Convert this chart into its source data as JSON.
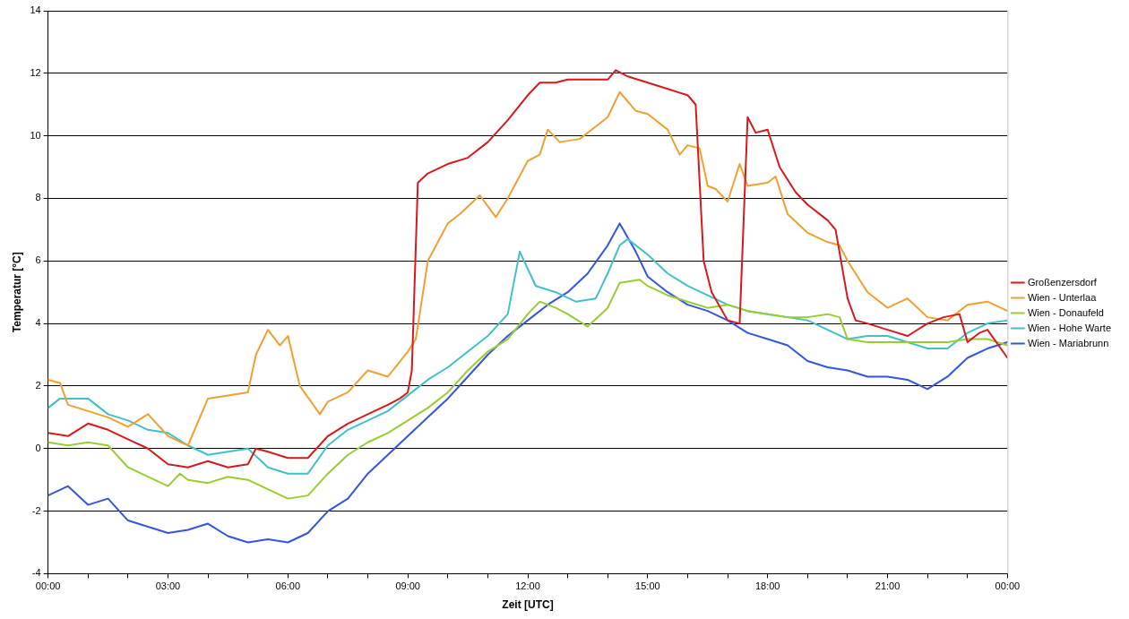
{
  "chart_data": {
    "type": "line",
    "xlabel": "Zeit [UTC]",
    "ylabel": "Temperatur [°C]",
    "xlim": [
      0,
      24
    ],
    "xticks": [
      {
        "value": 0,
        "label": "00:00"
      },
      {
        "value": 1,
        "label": null
      },
      {
        "value": 2,
        "label": null
      },
      {
        "value": 3,
        "label": "03:00"
      },
      {
        "value": 4,
        "label": null
      },
      {
        "value": 5,
        "label": null
      },
      {
        "value": 6,
        "label": "06:00"
      },
      {
        "value": 7,
        "label": null
      },
      {
        "value": 8,
        "label": null
      },
      {
        "value": 9,
        "label": "09:00"
      },
      {
        "value": 10,
        "label": null
      },
      {
        "value": 11,
        "label": null
      },
      {
        "value": 12,
        "label": "12:00"
      },
      {
        "value": 13,
        "label": null
      },
      {
        "value": 14,
        "label": null
      },
      {
        "value": 15,
        "label": "15:00"
      },
      {
        "value": 16,
        "label": null
      },
      {
        "value": 17,
        "label": null
      },
      {
        "value": 18,
        "label": "18:00"
      },
      {
        "value": 19,
        "label": null
      },
      {
        "value": 20,
        "label": null
      },
      {
        "value": 21,
        "label": "21:00"
      },
      {
        "value": 22,
        "label": null
      },
      {
        "value": 23,
        "label": null
      },
      {
        "value": 24,
        "label": "00:00"
      }
    ],
    "ylim": [
      -4,
      14
    ],
    "yticks": [
      -4,
      -2,
      0,
      2,
      4,
      6,
      8,
      10,
      12,
      14
    ],
    "grid": "y",
    "legend": "right",
    "marker": "none",
    "line_style": "solid",
    "series": [
      {
        "name": "Großenzersdorf",
        "color": "#d7191c",
        "x": [
          0,
          0.5,
          1,
          1.5,
          2,
          2.5,
          3,
          3.5,
          4,
          4.5,
          5,
          5.2,
          5.5,
          6,
          6.5,
          7,
          7.5,
          8,
          8.5,
          8.8,
          9,
          9.1,
          9.25,
          9.5,
          10,
          10.5,
          11,
          11.5,
          12,
          12.3,
          12.7,
          13,
          13.5,
          14,
          14.2,
          14.5,
          15,
          15.5,
          16,
          16.2,
          16.4,
          16.6,
          17,
          17.3,
          17.5,
          17.7,
          18,
          18.3,
          18.7,
          19,
          19.5,
          19.7,
          20,
          20.2,
          20.5,
          21,
          21.5,
          22,
          22.4,
          22.8,
          23,
          23.3,
          23.5,
          24
        ],
        "values": [
          0.5,
          0.4,
          0.8,
          0.6,
          0.3,
          0.0,
          -0.5,
          -0.6,
          -0.4,
          -0.6,
          -0.5,
          0.0,
          -0.1,
          -0.3,
          -0.3,
          0.4,
          0.8,
          1.1,
          1.4,
          1.6,
          1.8,
          2.5,
          8.5,
          8.8,
          9.1,
          9.3,
          9.8,
          10.5,
          11.3,
          11.7,
          11.7,
          11.8,
          11.8,
          11.8,
          12.1,
          11.9,
          11.7,
          11.5,
          11.3,
          11.0,
          6.0,
          5.0,
          4.1,
          4.0,
          10.6,
          10.1,
          10.2,
          9.0,
          8.2,
          7.8,
          7.3,
          7.0,
          4.8,
          4.1,
          4.0,
          3.8,
          3.6,
          4.0,
          4.2,
          4.3,
          3.4,
          3.7,
          3.8,
          2.9
        ]
      },
      {
        "name": "Wien - Unterlaa",
        "color": "#f0a030",
        "x": [
          0,
          0.3,
          0.5,
          1,
          1.5,
          2,
          2.5,
          3,
          3.5,
          4,
          4.5,
          5,
          5.2,
          5.5,
          5.8,
          6,
          6.3,
          6.8,
          7,
          7.5,
          8,
          8.5,
          9,
          9.2,
          9.5,
          10,
          10.3,
          10.8,
          11.2,
          11.5,
          12,
          12.3,
          12.5,
          12.8,
          13.3,
          13.7,
          14,
          14.3,
          14.7,
          15,
          15.5,
          15.8,
          16,
          16.3,
          16.5,
          16.7,
          17,
          17.3,
          17.5,
          18,
          18.2,
          18.5,
          19,
          19.5,
          19.8,
          20,
          20.5,
          21,
          21.5,
          22,
          22.5,
          23,
          23.5,
          24
        ],
        "values": [
          2.2,
          2.1,
          1.4,
          1.2,
          1.0,
          0.7,
          1.1,
          0.4,
          0.1,
          1.6,
          1.7,
          1.8,
          3.0,
          3.8,
          3.3,
          3.6,
          2.0,
          1.1,
          1.5,
          1.8,
          2.5,
          2.3,
          3.1,
          3.5,
          6.0,
          7.2,
          7.5,
          8.1,
          7.4,
          8.0,
          9.2,
          9.4,
          10.2,
          9.8,
          9.9,
          10.3,
          10.6,
          11.4,
          10.8,
          10.7,
          10.2,
          9.4,
          9.7,
          9.6,
          8.4,
          8.3,
          7.9,
          9.1,
          8.4,
          8.5,
          8.7,
          7.5,
          6.9,
          6.6,
          6.5,
          6.0,
          5.0,
          4.5,
          4.8,
          4.2,
          4.1,
          4.6,
          4.7,
          4.4
        ]
      },
      {
        "name": "Wien - Donaufeld",
        "color": "#99cc33",
        "x": [
          0,
          0.5,
          1,
          1.5,
          2,
          2.5,
          3,
          3.3,
          3.5,
          4,
          4.5,
          5,
          5.5,
          6,
          6.5,
          7,
          7.5,
          8,
          8.5,
          9,
          9.5,
          10,
          10.5,
          11,
          11.5,
          12,
          12.3,
          12.7,
          13,
          13.5,
          14,
          14.3,
          14.8,
          15,
          15.5,
          16,
          16.5,
          17,
          17.5,
          18,
          18.5,
          19,
          19.5,
          19.8,
          20,
          20.5,
          21,
          22,
          22.5,
          23,
          23.5,
          24
        ],
        "values": [
          0.2,
          0.1,
          0.2,
          0.1,
          -0.6,
          -0.9,
          -1.2,
          -0.8,
          -1.0,
          -1.1,
          -0.9,
          -1.0,
          -1.3,
          -1.6,
          -1.5,
          -0.8,
          -0.2,
          0.2,
          0.5,
          0.9,
          1.3,
          1.8,
          2.5,
          3.1,
          3.5,
          4.3,
          4.7,
          4.5,
          4.3,
          3.9,
          4.5,
          5.3,
          5.4,
          5.2,
          4.9,
          4.7,
          4.5,
          4.6,
          4.4,
          4.3,
          4.2,
          4.2,
          4.3,
          4.2,
          3.5,
          3.4,
          3.4,
          3.4,
          3.4,
          3.5,
          3.5,
          3.3
        ]
      },
      {
        "name": "Wien - Hohe Warte",
        "color": "#40c0c8",
        "x": [
          0,
          0.3,
          1,
          1.5,
          2,
          2.5,
          3,
          3.5,
          4,
          4.5,
          5,
          5.5,
          6,
          6.5,
          7,
          7.5,
          8,
          8.5,
          9,
          9.5,
          10,
          10.5,
          11,
          11.5,
          11.8,
          12.2,
          12.7,
          13.2,
          13.7,
          14,
          14.3,
          14.5,
          15,
          15.5,
          16,
          16.5,
          17,
          17.5,
          18,
          18.5,
          19,
          19.5,
          20,
          20.5,
          21,
          21.5,
          22,
          22.5,
          23,
          23.5,
          24
        ],
        "values": [
          1.3,
          1.6,
          1.6,
          1.1,
          0.9,
          0.6,
          0.5,
          0.1,
          -0.2,
          -0.1,
          0.0,
          -0.6,
          -0.8,
          -0.8,
          0.1,
          0.6,
          0.9,
          1.2,
          1.7,
          2.2,
          2.6,
          3.1,
          3.6,
          4.3,
          6.3,
          5.2,
          5.0,
          4.7,
          4.8,
          5.6,
          6.5,
          6.7,
          6.2,
          5.6,
          5.2,
          4.9,
          4.6,
          4.4,
          4.3,
          4.2,
          4.1,
          3.8,
          3.5,
          3.6,
          3.6,
          3.4,
          3.2,
          3.2,
          3.7,
          4.0,
          4.1
        ]
      },
      {
        "name": "Wien - Mariabrunn",
        "color": "#3355dd",
        "x": [
          0,
          0.5,
          1,
          1.5,
          2,
          2.5,
          3,
          3.5,
          4,
          4.5,
          5,
          5.5,
          6,
          6.5,
          7,
          7.5,
          8,
          8.5,
          9,
          9.5,
          10,
          10.5,
          11,
          11.5,
          12,
          12.5,
          13,
          13.5,
          14,
          14.3,
          14.7,
          15,
          15.5,
          16,
          16.5,
          17,
          17.5,
          18,
          18.5,
          19,
          19.5,
          20,
          20.5,
          21,
          21.5,
          22,
          22.5,
          23,
          23.5,
          24
        ],
        "values": [
          -1.5,
          -1.2,
          -1.8,
          -1.6,
          -2.3,
          -2.5,
          -2.7,
          -2.6,
          -2.4,
          -2.8,
          -3.0,
          -2.9,
          -3.0,
          -2.7,
          -2.0,
          -1.6,
          -0.8,
          -0.2,
          0.4,
          1.0,
          1.6,
          2.3,
          3.0,
          3.6,
          4.1,
          4.6,
          5.0,
          5.6,
          6.5,
          7.2,
          6.3,
          5.5,
          5.0,
          4.6,
          4.4,
          4.1,
          3.7,
          3.5,
          3.3,
          2.8,
          2.6,
          2.5,
          2.3,
          2.3,
          2.2,
          1.9,
          2.3,
          2.9,
          3.2,
          3.4
        ]
      }
    ]
  }
}
